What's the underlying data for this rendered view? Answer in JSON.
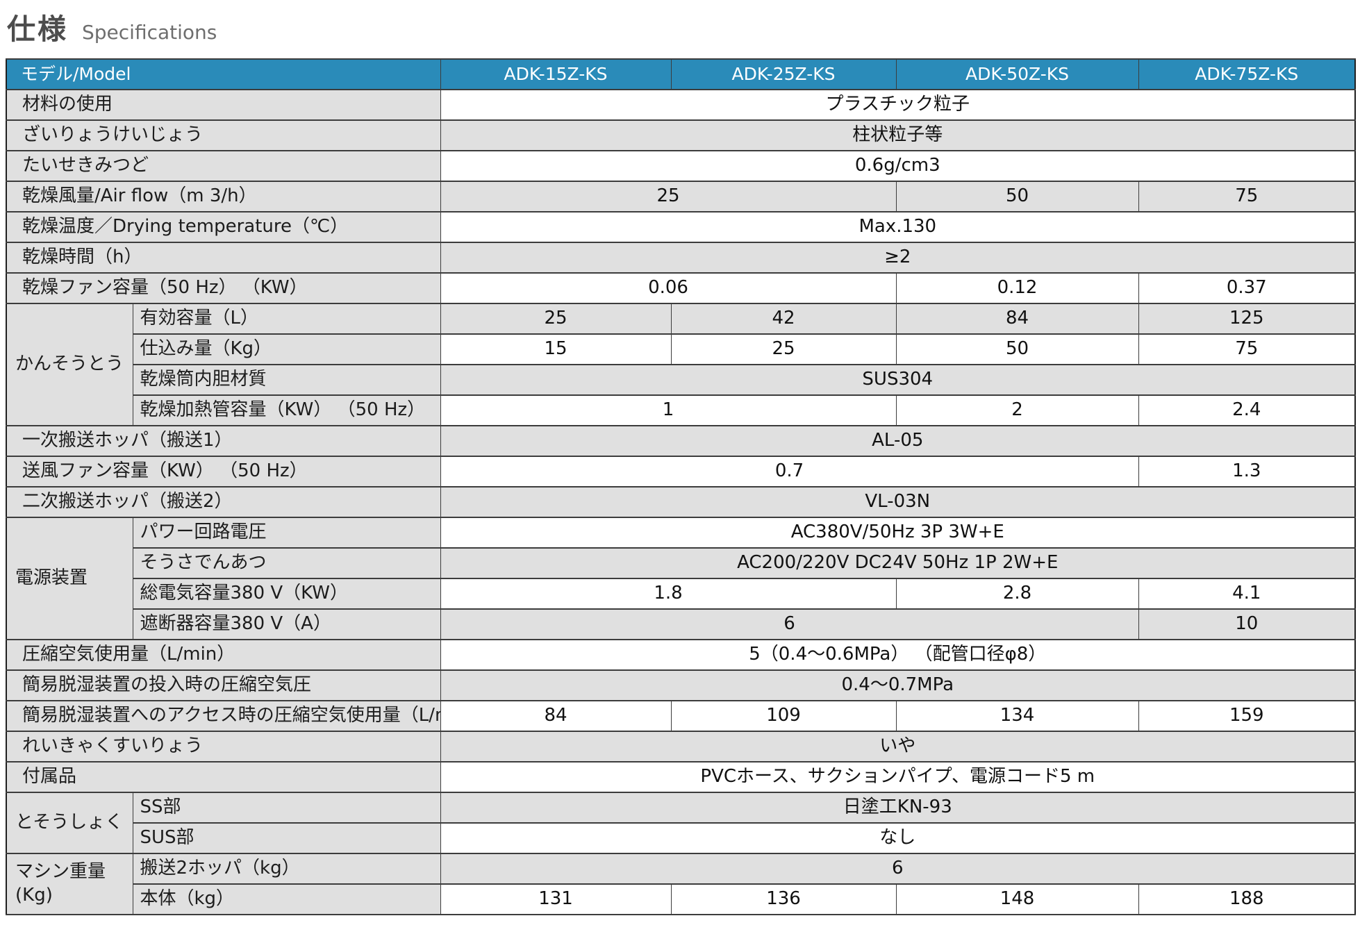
{
  "page": {
    "title_jp": "仕様",
    "title_en": "Specifications"
  },
  "colors": {
    "header_bg": "#2a8bb9",
    "header_text": "#ffffff",
    "row_gray": "#e0e0e0",
    "row_white": "#ffffff",
    "border": "#3c3c3c"
  },
  "table": {
    "header": {
      "label": "モデル/Model",
      "models": [
        "ADK-15Z-KS",
        "ADK-25Z-KS",
        "ADK-50Z-KS",
        "ADK-75Z-KS"
      ]
    },
    "rows": [
      {
        "label": "材料の使用",
        "cells": [
          {
            "text": "プラスチック粒子",
            "span": 4
          }
        ]
      },
      {
        "label": "ざいりょうけいじょう",
        "cells": [
          {
            "text": "柱状粒子等",
            "span": 4
          }
        ]
      },
      {
        "label": "たいせきみつど",
        "cells": [
          {
            "text": "0.6g/cm3",
            "span": 4
          }
        ]
      },
      {
        "label": "乾燥風量/Air flow（m 3/h）",
        "cells": [
          {
            "text": "25",
            "span": 2
          },
          {
            "text": "50",
            "span": 1
          },
          {
            "text": "75",
            "span": 1
          }
        ]
      },
      {
        "label": "乾燥温度／Drying temperature（℃）",
        "cells": [
          {
            "text": "Max.130",
            "span": 4
          }
        ]
      },
      {
        "label": "乾燥時間（h）",
        "cells": [
          {
            "text": "≥2",
            "span": 4
          }
        ]
      },
      {
        "label": "乾燥ファン容量（50 Hz） （KW）",
        "cells": [
          {
            "text": "0.06",
            "span": 2
          },
          {
            "text": "0.12",
            "span": 1
          },
          {
            "text": "0.37",
            "span": 1
          }
        ]
      },
      {
        "group": {
          "label": "かんそうとう",
          "rowspan": 4
        },
        "sublabel": "有効容量（L）",
        "cells": [
          {
            "text": "25",
            "span": 1
          },
          {
            "text": "42",
            "span": 1
          },
          {
            "text": "84",
            "span": 1
          },
          {
            "text": "125",
            "span": 1
          }
        ]
      },
      {
        "sublabel": "仕込み量（Kg）",
        "cells": [
          {
            "text": "15",
            "span": 1
          },
          {
            "text": "25",
            "span": 1
          },
          {
            "text": "50",
            "span": 1
          },
          {
            "text": "75",
            "span": 1
          }
        ]
      },
      {
        "sublabel": "乾燥筒内胆材質",
        "cells": [
          {
            "text": "SUS304",
            "span": 4
          }
        ]
      },
      {
        "sublabel": "乾燥加熱管容量（KW） （50 Hz）",
        "cells": [
          {
            "text": "1",
            "span": 2
          },
          {
            "text": "2",
            "span": 1
          },
          {
            "text": "2.4",
            "span": 1
          }
        ]
      },
      {
        "label": "一次搬送ホッパ（搬送1）",
        "cells": [
          {
            "text": "AL-05",
            "span": 4
          }
        ]
      },
      {
        "label": "送風ファン容量（KW） （50 Hz）",
        "cells": [
          {
            "text": "0.7",
            "span": 3
          },
          {
            "text": "1.3",
            "span": 1
          }
        ]
      },
      {
        "label": "二次搬送ホッパ（搬送2）",
        "cells": [
          {
            "text": "VL-03N",
            "span": 4
          }
        ]
      },
      {
        "group": {
          "label": "電源装置",
          "rowspan": 4
        },
        "sublabel": "パワー回路電圧",
        "cells": [
          {
            "text": "AC380V/50Hz 3P 3W+E",
            "span": 4
          }
        ]
      },
      {
        "sublabel": "そうさでんあつ",
        "cells": [
          {
            "text": "AC200/220V DC24V 50Hz 1P 2W+E",
            "span": 4
          }
        ]
      },
      {
        "sublabel": "総電気容量380 V（KW）",
        "cells": [
          {
            "text": "1.8",
            "span": 2
          },
          {
            "text": "2.8",
            "span": 1
          },
          {
            "text": "4.1",
            "span": 1
          }
        ]
      },
      {
        "sublabel": "遮断器容量380 V（A）",
        "cells": [
          {
            "text": "6",
            "span": 3
          },
          {
            "text": "10",
            "span": 1
          }
        ]
      },
      {
        "label": "圧縮空気使用量（L/min）",
        "cells": [
          {
            "text": "5（0.4～0.6MPa） （配管口径φ8）",
            "span": 4
          }
        ]
      },
      {
        "label": "簡易脱湿装置の投入時の圧縮空気圧",
        "cells": [
          {
            "text": "0.4～0.7MPa",
            "span": 4
          }
        ]
      },
      {
        "label": "簡易脱湿装置へのアクセス時の圧縮空気使用量（L/min）",
        "cells": [
          {
            "text": "84",
            "span": 1
          },
          {
            "text": "109",
            "span": 1
          },
          {
            "text": "134",
            "span": 1
          },
          {
            "text": "159",
            "span": 1
          }
        ]
      },
      {
        "label": "れいきゃくすいりょう",
        "cells": [
          {
            "text": "いや",
            "span": 4
          }
        ]
      },
      {
        "label": "付属品",
        "cells": [
          {
            "text": "PVCホース、サクションパイプ、電源コード5 m",
            "span": 4
          }
        ]
      },
      {
        "group": {
          "label": "とそうしょく",
          "rowspan": 2
        },
        "sublabel": "SS部",
        "cells": [
          {
            "text": "日塗工KN-93",
            "span": 4
          }
        ]
      },
      {
        "sublabel": "SUS部",
        "cells": [
          {
            "text": "なし",
            "span": 4
          }
        ]
      },
      {
        "group": {
          "label": "マシン重量\n(Kg)",
          "rowspan": 2
        },
        "sublabel": "搬送2ホッパ（kg）",
        "cells": [
          {
            "text": "6",
            "span": 4
          }
        ]
      },
      {
        "sublabel": "本体（kg）",
        "cells": [
          {
            "text": "131",
            "span": 1
          },
          {
            "text": "136",
            "span": 1
          },
          {
            "text": "148",
            "span": 1
          },
          {
            "text": "188",
            "span": 1
          }
        ]
      }
    ]
  }
}
